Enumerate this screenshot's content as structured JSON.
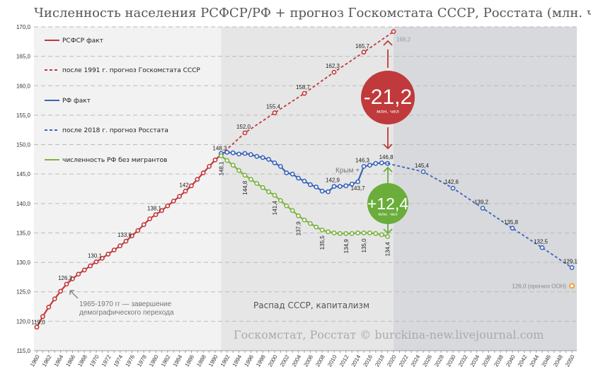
{
  "chart_data": {
    "type": "line",
    "title": "Численность населения РСФСР/РФ + прогноз Госкомстата СССР, Росстата (млн. чел)",
    "ylim": [
      115,
      170
    ],
    "y_ticks": [
      "115,0",
      "120,0",
      "125,0",
      "130,0",
      "135,0",
      "140,0",
      "145,0",
      "150,0",
      "155,0",
      "160,0",
      "165,0",
      "170,0"
    ],
    "xlim": [
      1960,
      2050
    ],
    "x_ticks": [
      "1960",
      "1962",
      "1964",
      "1966",
      "1968",
      "1970",
      "1972",
      "1974",
      "1976",
      "1978",
      "1980",
      "1982",
      "1984",
      "1986",
      "1988",
      "1990",
      "1992",
      "1994",
      "1996",
      "1998",
      "2000",
      "2002",
      "2004",
      "2006",
      "2008",
      "2010",
      "2012",
      "2014",
      "2016",
      "2018",
      "2020",
      "2022",
      "2024",
      "2026",
      "2028",
      "2030",
      "2032",
      "2034",
      "2036",
      "2038",
      "2040",
      "2042",
      "2044",
      "2046",
      "2048",
      "2050"
    ],
    "grid": "horizontal dashed",
    "legend_position": "top-left",
    "series": [
      {
        "name": "РСФСР факт",
        "color": "#c0393b",
        "dash": false,
        "x": [
          1960,
          1961,
          1962,
          1963,
          1964,
          1965,
          1966,
          1967,
          1968,
          1969,
          1970,
          1971,
          1972,
          1973,
          1974,
          1975,
          1976,
          1977,
          1978,
          1979,
          1980,
          1981,
          1982,
          1983,
          1984,
          1985,
          1986,
          1987,
          1988,
          1989,
          1990,
          1991
        ],
        "y": [
          119.0,
          120.8,
          122.4,
          123.8,
          125.1,
          126.3,
          127.2,
          128.0,
          128.7,
          129.4,
          130.1,
          130.7,
          131.4,
          132.1,
          132.8,
          133.6,
          134.5,
          135.4,
          136.4,
          137.4,
          138.1,
          138.8,
          139.6,
          140.4,
          141.2,
          142.1,
          143.0,
          144.1,
          145.2,
          146.3,
          147.4,
          148.3
        ],
        "labels": [
          [
            1960,
            "119,0"
          ],
          [
            1965,
            "126,3"
          ],
          [
            1970,
            "130,1"
          ],
          [
            1975,
            "133,6"
          ],
          [
            1980,
            "138,1"
          ],
          [
            1985,
            "142"
          ],
          [
            1991,
            "148,3"
          ]
        ]
      },
      {
        "name": "после 1991 г. прогноз Госкомстата  СССР",
        "color": "#c0393b",
        "dash": true,
        "x": [
          1991,
          1995,
          2000,
          2005,
          2010,
          2015,
          2020
        ],
        "y": [
          148.3,
          152.0,
          155.4,
          158.7,
          162.3,
          165.7,
          169.2
        ],
        "labels": [
          [
            1995,
            "152,0"
          ],
          [
            2000,
            "155,4"
          ],
          [
            2005,
            "158,7"
          ],
          [
            2010,
            "162,3"
          ],
          [
            2015,
            "165,7"
          ],
          [
            2020,
            "169,2"
          ]
        ]
      },
      {
        "name": "РФ факт",
        "color": "#3a64b8",
        "dash": false,
        "x": [
          1991,
          1992,
          1993,
          1994,
          1995,
          1996,
          1997,
          1998,
          1999,
          2000,
          2001,
          2002,
          2003,
          2004,
          2005,
          2006,
          2007,
          2008,
          2009,
          2010,
          2011,
          2012,
          2013,
          2014,
          2015,
          2016,
          2017,
          2018,
          2019
        ],
        "y": [
          148.5,
          148.7,
          148.6,
          148.4,
          148.5,
          148.3,
          148.0,
          147.8,
          147.5,
          146.9,
          146.3,
          145.2,
          145.0,
          144.3,
          143.8,
          143.2,
          142.8,
          142.1,
          142.0,
          142.9,
          142.9,
          143.0,
          143.3,
          143.7,
          146.3,
          146.5,
          146.8,
          146.9,
          146.8
        ],
        "labels": [
          [
            2010,
            "142,9"
          ],
          [
            2014,
            "143,7"
          ],
          [
            2015,
            "146,3"
          ],
          [
            2019,
            "146,8"
          ]
        ]
      },
      {
        "name": "после 2018  г. прогноз Росстата",
        "color": "#3a64b8",
        "dash": true,
        "x": [
          2019,
          2025,
          2030,
          2035,
          2040,
          2045,
          2050
        ],
        "y": [
          146.8,
          145.4,
          142.6,
          139.2,
          135.8,
          132.5,
          129.1
        ],
        "labels": [
          [
            2025,
            "145,4"
          ],
          [
            2030,
            "142,6"
          ],
          [
            2035,
            "139,2"
          ],
          [
            2040,
            "135,8"
          ],
          [
            2045,
            "132,5"
          ],
          [
            2050,
            "129,1"
          ]
        ]
      },
      {
        "name": "численность РФ без мигрантов",
        "color": "#7cb342",
        "dash": false,
        "x": [
          1991,
          1992,
          1993,
          1994,
          1995,
          1996,
          1997,
          1998,
          1999,
          2000,
          2001,
          2002,
          2003,
          2004,
          2005,
          2006,
          2007,
          2008,
          2009,
          2010,
          2011,
          2012,
          2013,
          2014,
          2015,
          2016,
          2017,
          2018,
          2019
        ],
        "y": [
          148.1,
          147.3,
          146.5,
          145.6,
          144.8,
          144.1,
          143.4,
          142.7,
          142.0,
          141.4,
          140.5,
          139.6,
          138.8,
          137.9,
          137.2,
          136.6,
          136.0,
          135.5,
          135.2,
          135.0,
          134.9,
          134.9,
          134.9,
          135.0,
          135.0,
          135.0,
          134.9,
          134.7,
          134.4
        ],
        "labels": [
          [
            1991,
            "148,1"
          ],
          [
            1995,
            "144,8"
          ],
          [
            2000,
            "141,4"
          ],
          [
            2004,
            "137,9"
          ],
          [
            2008,
            "135,5"
          ],
          [
            2012,
            "134,9"
          ],
          [
            2015,
            "135,0"
          ],
          [
            2019,
            "134,4"
          ]
        ]
      }
    ],
    "un_forecast": {
      "x": 2050,
      "y": 126.0,
      "label": "126,0 (прогноз ООН)",
      "color": "#f0a030"
    },
    "annotations": {
      "transition": [
        "1965-1970 гг — завершение",
        "демографического перехода"
      ],
      "era": "Распад СССР, капитализм",
      "crimea": "Крым +",
      "loss": {
        "value": "-21,2",
        "unit": "млн. чел",
        "color": "#c0393b"
      },
      "gain": {
        "value": "+12,4",
        "unit": "млн. чел",
        "color": "#6aad3a"
      },
      "source": "Госкомстат, Росстат © burckina-new.livejournal.com"
    },
    "region_colors": [
      "#f2f2f2",
      "#e6e6e6",
      "#d8d9dd"
    ]
  }
}
